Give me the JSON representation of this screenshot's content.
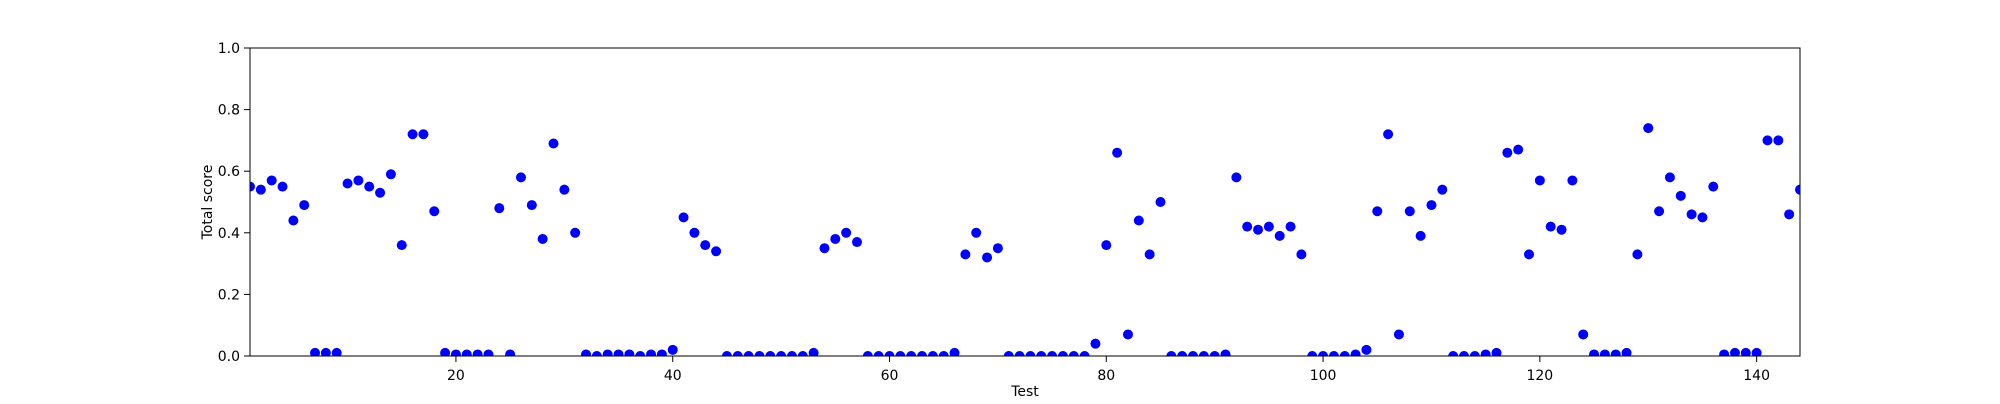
{
  "chart_data": {
    "type": "scatter",
    "title": "",
    "xlabel": "Test",
    "ylabel": "Total score",
    "xlim": [
      1,
      144
    ],
    "ylim": [
      0.0,
      1.0
    ],
    "grid": false,
    "marker_color": "#0000ff",
    "x_ticks": [
      20,
      40,
      60,
      80,
      100,
      120,
      140
    ],
    "y_ticks": [
      0.0,
      0.2,
      0.4,
      0.6,
      0.8,
      1.0
    ],
    "x_tick_labels": [
      "20",
      "40",
      "60",
      "80",
      "100",
      "120",
      "140"
    ],
    "y_tick_labels": [
      "0.0",
      "0.2",
      "0.4",
      "0.6",
      "0.8",
      "1.0"
    ],
    "x": [
      1,
      2,
      3,
      4,
      5,
      6,
      7,
      8,
      9,
      10,
      11,
      12,
      13,
      14,
      15,
      16,
      17,
      18,
      19,
      20,
      21,
      22,
      23,
      24,
      25,
      26,
      27,
      28,
      29,
      30,
      31,
      32,
      33,
      34,
      35,
      36,
      37,
      38,
      39,
      40,
      41,
      42,
      43,
      44,
      45,
      46,
      47,
      48,
      49,
      50,
      51,
      52,
      53,
      54,
      55,
      56,
      57,
      58,
      59,
      60,
      61,
      62,
      63,
      64,
      65,
      66,
      67,
      68,
      69,
      70,
      71,
      72,
      73,
      74,
      75,
      76,
      77,
      78,
      79,
      80,
      81,
      82,
      83,
      84,
      85,
      86,
      87,
      88,
      89,
      90,
      91,
      92,
      93,
      94,
      95,
      96,
      97,
      98,
      99,
      100,
      101,
      102,
      103,
      104,
      105,
      106,
      107,
      108,
      109,
      110,
      111,
      112,
      113,
      114,
      115,
      116,
      117,
      118,
      119,
      120,
      121,
      122,
      123,
      124,
      125,
      126,
      127,
      128,
      129,
      130,
      131,
      132,
      133,
      134,
      135,
      136,
      137,
      138,
      139,
      140,
      141,
      142,
      143,
      144
    ],
    "y": [
      0.55,
      0.54,
      0.57,
      0.55,
      0.44,
      0.49,
      0.01,
      0.01,
      0.01,
      0.56,
      0.57,
      0.55,
      0.53,
      0.59,
      0.36,
      0.72,
      0.72,
      0.47,
      0.01,
      0.005,
      0.005,
      0.005,
      0.005,
      0.48,
      0.005,
      0.58,
      0.49,
      0.38,
      0.69,
      0.54,
      0.4,
      0.005,
      0.0,
      0.005,
      0.005,
      0.005,
      0.0,
      0.005,
      0.005,
      0.02,
      0.45,
      0.4,
      0.36,
      0.34,
      0.0,
      0.0,
      0.0,
      0.0,
      0.0,
      0.0,
      0.0,
      0.0,
      0.01,
      0.35,
      0.38,
      0.4,
      0.37,
      0.0,
      0.0,
      0.0,
      0.0,
      0.0,
      0.0,
      0.0,
      0.0,
      0.01,
      0.33,
      0.4,
      0.32,
      0.35,
      0.0,
      0.0,
      0.0,
      0.0,
      0.0,
      0.0,
      0.0,
      0.0,
      0.04,
      0.36,
      0.66,
      0.07,
      0.44,
      0.33,
      0.5,
      0.0,
      0.0,
      0.0,
      0.0,
      0.0,
      0.005,
      0.58,
      0.42,
      0.41,
      0.42,
      0.39,
      0.42,
      0.33,
      0.0,
      0.0,
      0.0,
      0.0,
      0.005,
      0.02,
      0.47,
      0.72,
      0.07,
      0.47,
      0.39,
      0.49,
      0.54,
      0.0,
      0.0,
      0.0,
      0.005,
      0.01,
      0.66,
      0.67,
      0.33,
      0.57,
      0.42,
      0.41,
      0.57,
      0.07,
      0.005,
      0.005,
      0.005,
      0.01,
      0.33,
      0.74,
      0.47,
      0.58,
      0.52,
      0.46,
      0.45,
      0.55,
      0.005,
      0.01,
      0.01,
      0.01,
      0.7,
      0.7,
      0.46,
      0.54
    ]
  }
}
